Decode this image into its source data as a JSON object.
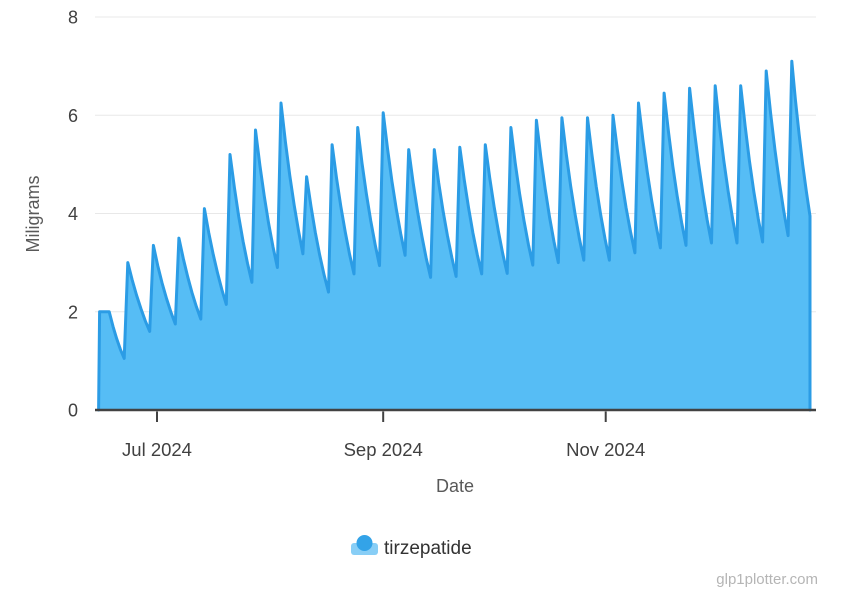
{
  "watermark": "glp1plotter.com",
  "chart_data": {
    "type": "area",
    "title": "",
    "series_name": "tirzepatide",
    "xlabel": "Date",
    "ylabel": "Miligrams",
    "ylim": [
      0,
      8
    ],
    "yticks": [
      0,
      2,
      4,
      6,
      8
    ],
    "grid": "horizontal",
    "legend_position": "bottom",
    "x_domain": [
      "2024-06-14",
      "2024-12-27"
    ],
    "xticks": [
      {
        "label": "Jul 2024",
        "date": "2024-07-01"
      },
      {
        "label": "Sep 2024",
        "date": "2024-09-01"
      },
      {
        "label": "Nov 2024",
        "date": "2024-11-01"
      }
    ],
    "first_dose_date": "2024-06-15",
    "dose_interval_days": 7,
    "first_dose_plateau_days": 2.9,
    "peaks_mg": [
      2.0,
      3.0,
      3.35,
      3.5,
      4.1,
      5.2,
      5.7,
      6.25,
      4.75,
      5.4,
      5.75,
      6.05,
      5.3,
      5.3,
      5.35,
      5.4,
      5.75,
      5.9,
      5.95,
      5.95,
      6.0,
      6.25,
      6.45,
      6.55,
      6.6,
      6.6,
      6.9,
      7.1
    ],
    "troughs_mg": [
      1.05,
      1.6,
      1.75,
      1.85,
      2.15,
      2.6,
      2.9,
      3.18,
      2.4,
      2.77,
      2.94,
      3.15,
      2.7,
      2.72,
      2.77,
      2.78,
      2.95,
      3.0,
      3.05,
      3.05,
      3.2,
      3.3,
      3.35,
      3.4,
      3.4,
      3.42,
      3.55
    ],
    "end_of_chart_mg": 3.95,
    "colors": {
      "area_fill": "#56bdf5",
      "line": "#2b9ce5",
      "gridline": "#e8e8e8",
      "axis": "#424242",
      "legend_circle": "#33a3e8",
      "legend_box": "#88cef6"
    }
  }
}
